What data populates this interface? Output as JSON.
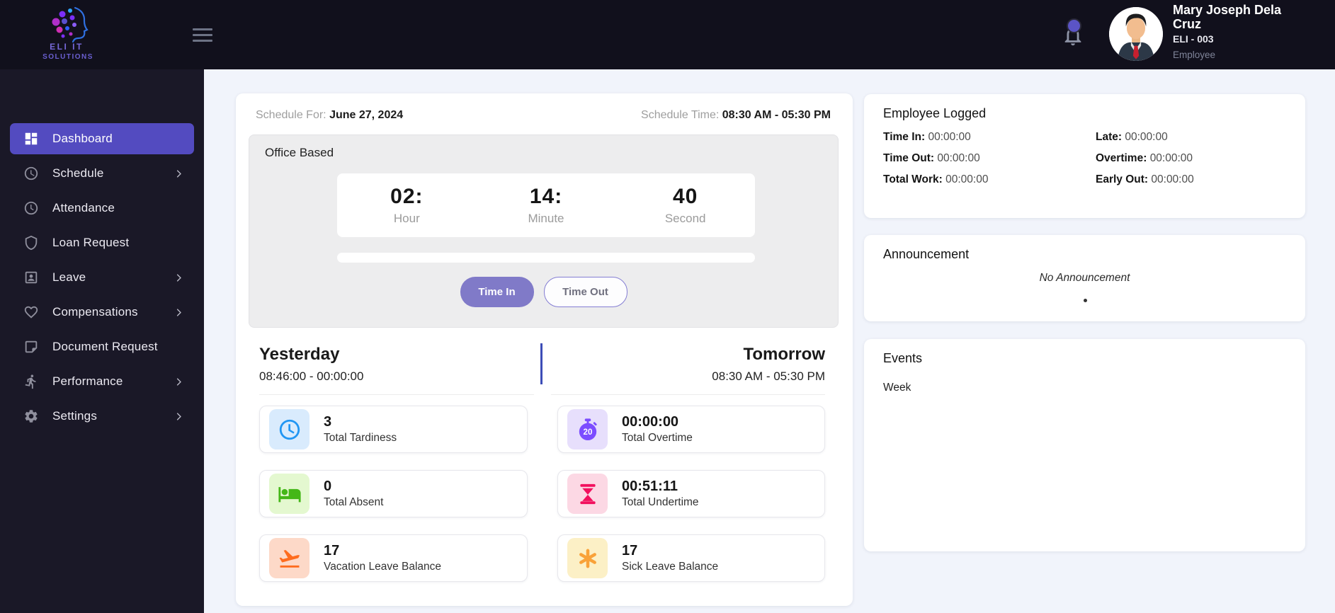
{
  "topbar": {
    "logo": {
      "line1": "ELI IT",
      "line2": "SOLUTIONS"
    },
    "user": {
      "name": "Mary Joseph Dela Cruz",
      "employee_id": "ELI - 003",
      "role": "Employee"
    }
  },
  "sidebar": {
    "items": [
      {
        "label": "Dashboard",
        "icon": "dashboard-grid-icon",
        "active": true,
        "has_chevron": false
      },
      {
        "label": "Schedule",
        "icon": "clock-icon",
        "active": false,
        "has_chevron": true
      },
      {
        "label": "Attendance",
        "icon": "clock-outline-icon",
        "active": false,
        "has_chevron": false
      },
      {
        "label": "Loan Request",
        "icon": "shield-icon",
        "active": false,
        "has_chevron": false
      },
      {
        "label": "Leave",
        "icon": "person-badge-icon",
        "active": false,
        "has_chevron": true
      },
      {
        "label": "Compensations",
        "icon": "heart-icon",
        "active": false,
        "has_chevron": true
      },
      {
        "label": "Document Request",
        "icon": "document-icon",
        "active": false,
        "has_chevron": false
      },
      {
        "label": "Performance",
        "icon": "runner-icon",
        "active": false,
        "has_chevron": true
      },
      {
        "label": "Settings",
        "icon": "gear-icon",
        "active": false,
        "has_chevron": true
      }
    ]
  },
  "main": {
    "schedule_for_label": "Schedule For:",
    "schedule_for_value": "June 27, 2024",
    "schedule_time_label": "Schedule Time:",
    "schedule_time_value": "08:30 AM - 05:30 PM",
    "clock": {
      "title": "Office Based",
      "hour": "02:",
      "hour_label": "Hour",
      "minute": "14:",
      "minute_label": "Minute",
      "second": "40",
      "second_label": "Second",
      "progress_percent": 0,
      "time_in_button": "Time In",
      "time_out_button": "Time Out"
    },
    "yesterday": {
      "title": "Yesterday",
      "range": "08:46:00 - 00:00:00"
    },
    "tomorrow": {
      "title": "Tomorrow",
      "range": "08:30 AM - 05:30 PM"
    },
    "stats_left": [
      {
        "value": "3",
        "label": "Total Tardiness",
        "icon": "clock-icon",
        "icon_color": "#2196f3",
        "icon_bg": "#d9ebfd"
      },
      {
        "value": "0",
        "label": "Total Absent",
        "icon": "bed-icon",
        "icon_color": "#44b718",
        "icon_bg": "#e4f8d0"
      },
      {
        "value": "17",
        "label": "Vacation Leave Balance",
        "icon": "airplane-takeoff-icon",
        "icon_color": "#fe6c1e",
        "icon_bg": "#fdd9c8"
      }
    ],
    "stats_right": [
      {
        "value": "00:00:00",
        "label": "Total Overtime",
        "icon": "stopwatch-20-icon",
        "icon_text": "20",
        "icon_color": "#7c4dff",
        "icon_bg": "#e7dffc"
      },
      {
        "value": "00:51:11",
        "label": "Total Undertime",
        "icon": "hourglass-icon",
        "icon_color": "#f2105e",
        "icon_bg": "#fcd8e4"
      },
      {
        "value": "17",
        "label": "Sick Leave Balance",
        "icon": "asterisk-icon",
        "icon_color": "#f9a239",
        "icon_bg": "#fcf0c6"
      }
    ]
  },
  "employee_logged": {
    "title": "Employee Logged",
    "left_rows": [
      {
        "label": "Time In:",
        "value": "00:00:00"
      },
      {
        "label": "Time Out:",
        "value": "00:00:00"
      },
      {
        "label": "Total Work:",
        "value": "00:00:00"
      }
    ],
    "right_rows": [
      {
        "label": "Late:",
        "value": "00:00:00"
      },
      {
        "label": "Overtime:",
        "value": "00:00:00"
      },
      {
        "label": "Early Out:",
        "value": "00:00:00"
      }
    ]
  },
  "announcement": {
    "title": "Announcement",
    "empty_text": "No Announcement"
  },
  "events": {
    "title": "Events",
    "filter_label": "Week"
  },
  "colors": {
    "accent": "#534bc0",
    "button_fill": "#807ac8",
    "divider": "#3d4db7",
    "topbar_bg": "#11101c",
    "sidebar_bg": "#1a1827"
  }
}
